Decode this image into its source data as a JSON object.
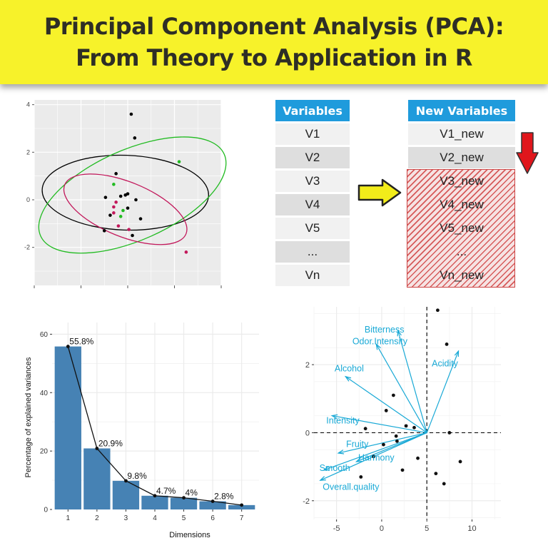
{
  "title": {
    "line1": "Principal Component Analysis (PCA):",
    "line2": "From Theory to Application in R"
  },
  "colors": {
    "banner": "#f7f22a",
    "table_header": "#1f9bdc",
    "arrow_right": "#f2ec1a",
    "arrow_down": "#e0161c",
    "bars": "#4682b4",
    "biplot_arrows": "#19a9d6",
    "ellipse_black": "#000000",
    "ellipse_green": "#22bb22",
    "ellipse_magenta": "#c2185b"
  },
  "variables_table": {
    "header": "Variables",
    "rows": [
      "V1",
      "V2",
      "V3",
      "V4",
      "V5",
      "...",
      "Vn"
    ]
  },
  "new_variables_table": {
    "header": "New Variables",
    "rows": [
      "V1_new",
      "V2_new",
      "V3_new",
      "V4_new",
      "V5_new",
      "...",
      "Vn_new"
    ]
  },
  "icons": [
    "arrow-right-icon",
    "arrow-down-icon"
  ],
  "chart_data": [
    {
      "type": "scatter",
      "xlabel": "",
      "ylabel": "",
      "yticks": [
        "4",
        "2",
        "0",
        "-2"
      ],
      "ylim": [
        -3.6,
        4.2
      ],
      "xlim": [
        -4,
        4
      ],
      "grid": true,
      "points": [
        {
          "x": 0.15,
          "y": 3.6,
          "g": "black"
        },
        {
          "x": 0.3,
          "y": 2.6,
          "g": "black"
        },
        {
          "x": 2.2,
          "y": 1.6,
          "g": "green"
        },
        {
          "x": -0.5,
          "y": 1.1,
          "g": "black"
        },
        {
          "x": -0.6,
          "y": 0.65,
          "g": "green"
        },
        {
          "x": -0.3,
          "y": 0.15,
          "g": "black"
        },
        {
          "x": -0.1,
          "y": 0.2,
          "g": "black"
        },
        {
          "x": 0.0,
          "y": 0.25,
          "g": "black"
        },
        {
          "x": -0.95,
          "y": 0.1,
          "g": "black"
        },
        {
          "x": 0.35,
          "y": 0.0,
          "g": "black"
        },
        {
          "x": -0.5,
          "y": -0.1,
          "g": "magenta"
        },
        {
          "x": -0.6,
          "y": -0.3,
          "g": "magenta"
        },
        {
          "x": -0.2,
          "y": -0.45,
          "g": "green"
        },
        {
          "x": 0.0,
          "y": -0.35,
          "g": "black"
        },
        {
          "x": -0.75,
          "y": -0.65,
          "g": "black"
        },
        {
          "x": -0.6,
          "y": -0.55,
          "g": "magenta"
        },
        {
          "x": -0.3,
          "y": -0.7,
          "g": "green"
        },
        {
          "x": 0.55,
          "y": -0.8,
          "g": "black"
        },
        {
          "x": -0.4,
          "y": -1.1,
          "g": "magenta"
        },
        {
          "x": 0.05,
          "y": -1.25,
          "g": "magenta"
        },
        {
          "x": -1.0,
          "y": -1.3,
          "g": "black"
        },
        {
          "x": 0.2,
          "y": -1.5,
          "g": "black"
        },
        {
          "x": 2.5,
          "y": -2.2,
          "g": "magenta"
        }
      ],
      "ellipses": [
        {
          "g": "black",
          "cx": -0.1,
          "cy": 0.3,
          "rx": 1.6,
          "ry": 3.5,
          "angle_deg": 88
        },
        {
          "g": "green",
          "cx": 0.2,
          "cy": 0.2,
          "rx": 4.3,
          "ry": 1.9,
          "angle_deg": 24
        },
        {
          "g": "magenta",
          "cx": -0.1,
          "cy": -0.4,
          "rx": 2.8,
          "ry": 1.15,
          "angle_deg": -22
        }
      ]
    },
    {
      "type": "bar",
      "title": "",
      "xlabel": "Dimensions",
      "ylabel": "Percentage of explained variances",
      "categories": [
        "1",
        "2",
        "3",
        "4",
        "5",
        "6",
        "7"
      ],
      "values": [
        55.8,
        20.9,
        9.8,
        4.7,
        4,
        2.8,
        1.5
      ],
      "labels": [
        "55.8%",
        "20.9%",
        "9.8%",
        "4.7%",
        "4%",
        "2.8%",
        ""
      ],
      "yticks": [
        0,
        20,
        40,
        60
      ],
      "ylim": [
        0,
        64
      ],
      "line_overlay": true,
      "grid": true
    },
    {
      "type": "scatter",
      "subtype": "biplot",
      "xlabel": "",
      "ylabel": "",
      "xticks": [
        -5,
        0,
        5,
        10
      ],
      "yticks": [
        -2,
        0,
        2
      ],
      "xlim": [
        -7.5,
        13.2
      ],
      "ylim": [
        -2.55,
        3.7
      ],
      "points": [
        {
          "x": 6.2,
          "y": 3.6
        },
        {
          "x": 7.2,
          "y": 2.6
        },
        {
          "x": 1.3,
          "y": 1.1
        },
        {
          "x": 0.5,
          "y": 0.65
        },
        {
          "x": 2.7,
          "y": 0.2
        },
        {
          "x": 3.6,
          "y": 0.15
        },
        {
          "x": -1.8,
          "y": 0.12
        },
        {
          "x": 7.5,
          "y": 0.0
        },
        {
          "x": 1.6,
          "y": -0.1
        },
        {
          "x": 1.7,
          "y": -0.25
        },
        {
          "x": 0.2,
          "y": -0.35
        },
        {
          "x": -0.9,
          "y": -0.7
        },
        {
          "x": 4.0,
          "y": -0.75
        },
        {
          "x": 8.7,
          "y": -0.85
        },
        {
          "x": 2.3,
          "y": -1.1
        },
        {
          "x": 6.0,
          "y": -1.2
        },
        {
          "x": -2.3,
          "y": -1.3
        },
        {
          "x": 6.9,
          "y": -1.5
        }
      ],
      "vectors": [
        {
          "name": "Bitterness",
          "x": 1.8,
          "y": 3.0
        },
        {
          "name": "Odor.Intensity",
          "x": -0.6,
          "y": 2.6
        },
        {
          "name": "Acidity",
          "x": 8.5,
          "y": 2.4
        },
        {
          "name": "Alcohol",
          "x": -4.0,
          "y": 1.65
        },
        {
          "name": "Intensity",
          "x": -5.5,
          "y": 0.5
        },
        {
          "name": "Fruity",
          "x": -4.8,
          "y": -0.6
        },
        {
          "name": "Harmony",
          "x": -2.8,
          "y": -0.85
        },
        {
          "name": "Smooth",
          "x": -6.4,
          "y": -1.1
        },
        {
          "name": "Overall.quality",
          "x": -6.8,
          "y": -1.4
        }
      ],
      "vector_labels": [
        {
          "name": "Bitterness",
          "x": 0.3,
          "y": 2.95
        },
        {
          "name": "Odor.Intensity",
          "x": -0.2,
          "y": 2.6
        },
        {
          "name": "Acidity",
          "x": 7.0,
          "y": 1.95
        },
        {
          "name": "Alcohol",
          "x": -3.6,
          "y": 1.8
        },
        {
          "name": "Intensity",
          "x": -4.3,
          "y": 0.27
        },
        {
          "name": "Fruity",
          "x": -2.7,
          "y": -0.42
        },
        {
          "name": "Harmony",
          "x": -0.6,
          "y": -0.82
        },
        {
          "name": "Smooth",
          "x": -5.2,
          "y": -1.12
        },
        {
          "name": "Overall.quality",
          "x": -3.4,
          "y": -1.68
        }
      ]
    }
  ]
}
